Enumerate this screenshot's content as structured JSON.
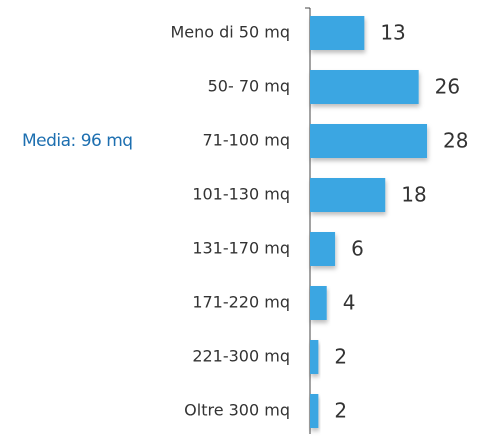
{
  "chart_data": {
    "type": "bar",
    "orientation": "horizontal",
    "categories": [
      "Meno di 50 mq",
      "50- 70 mq",
      "71-100 mq",
      "101-130 mq",
      "131-170 mq",
      "171-220 mq",
      "221-300 mq",
      "Oltre 300 mq"
    ],
    "values": [
      13,
      26,
      28,
      18,
      6,
      4,
      2,
      2
    ],
    "color": "#3aa6e2",
    "annotation": "Media: 96 mq",
    "annotation_color": "#1d6fb0"
  }
}
